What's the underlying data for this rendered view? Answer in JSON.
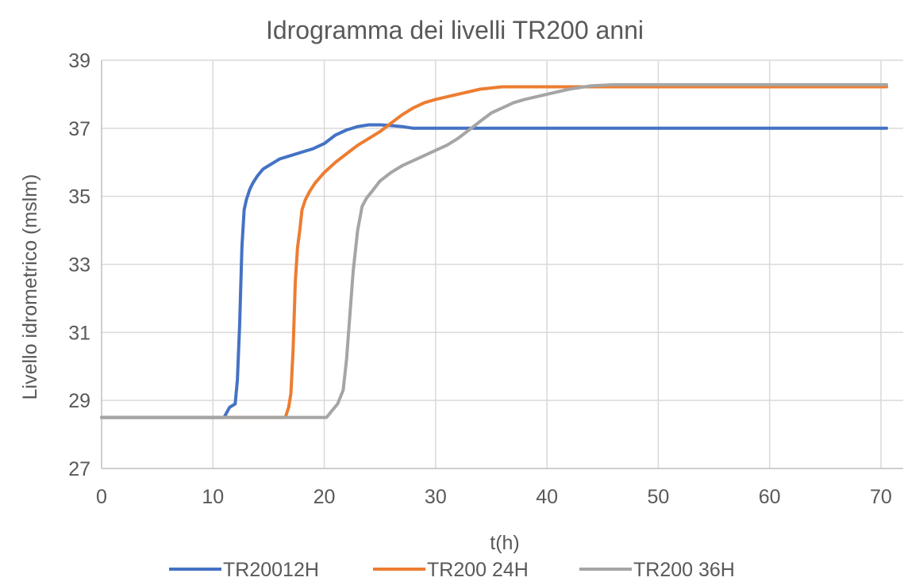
{
  "chart_data": {
    "type": "line",
    "title": "Idrogramma dei livelli TR200 anni",
    "xlabel": "t(h)",
    "ylabel": "Livello idrometrico (mslm)",
    "xlim": [
      0,
      72
    ],
    "ylim": [
      27,
      39
    ],
    "xticks": [
      0,
      10,
      20,
      30,
      40,
      50,
      60,
      70
    ],
    "yticks": [
      27,
      29,
      31,
      33,
      35,
      37,
      39
    ],
    "grid": true,
    "legend": "bottom",
    "series": [
      {
        "name": "TR20012H",
        "color": "#4472C4",
        "x": [
          0,
          11,
          11.5,
          12,
          12.2,
          12.4,
          12.6,
          12.8,
          13.0,
          13.3,
          13.6,
          14.0,
          14.5,
          15.0,
          15.5,
          16.0,
          17.0,
          18.0,
          19.0,
          20.0,
          21.0,
          22.0,
          23.0,
          24.0,
          25.0,
          26.0,
          27.0,
          28.0,
          30.0,
          40.0,
          50.0,
          60.0,
          70.5
        ],
        "y": [
          28.5,
          28.5,
          28.8,
          28.9,
          29.6,
          31.2,
          33.5,
          34.6,
          34.9,
          35.2,
          35.4,
          35.6,
          35.8,
          35.9,
          36.0,
          36.1,
          36.2,
          36.3,
          36.4,
          36.55,
          36.8,
          36.95,
          37.05,
          37.1,
          37.1,
          37.08,
          37.05,
          37.0,
          37.0,
          37.0,
          37.0,
          37.0,
          37.0
        ]
      },
      {
        "name": "TR200 24H",
        "color": "#ED7D31",
        "x": [
          0,
          16.5,
          16.8,
          17.0,
          17.2,
          17.4,
          17.6,
          17.8,
          18.0,
          18.3,
          18.7,
          19.2,
          20.0,
          21.0,
          22.0,
          23.0,
          24.0,
          25.0,
          26.0,
          27.0,
          28.0,
          29.0,
          30.0,
          32.0,
          34.0,
          36.0,
          40.0,
          50.0,
          60.0,
          70.5
        ],
        "y": [
          28.5,
          28.5,
          28.8,
          29.2,
          30.5,
          32.5,
          33.5,
          34.0,
          34.6,
          34.9,
          35.15,
          35.4,
          35.7,
          36.0,
          36.25,
          36.5,
          36.7,
          36.9,
          37.15,
          37.4,
          37.6,
          37.75,
          37.85,
          38.0,
          38.15,
          38.22,
          38.22,
          38.22,
          38.22,
          38.22
        ]
      },
      {
        "name": "TR200 36H",
        "color": "#A5A5A5",
        "x": [
          0,
          20.2,
          20.7,
          21.2,
          21.7,
          22.0,
          22.3,
          22.6,
          23.0,
          23.4,
          23.8,
          24.3,
          25.0,
          26.0,
          27.0,
          28.0,
          29.0,
          30.0,
          31.0,
          32.0,
          33.0,
          34.0,
          35.0,
          36.0,
          37.0,
          38.0,
          40.0,
          42.0,
          44.0,
          46.0,
          50.0,
          60.0,
          70.5
        ],
        "y": [
          28.5,
          28.5,
          28.7,
          28.9,
          29.3,
          30.2,
          31.5,
          32.8,
          34.0,
          34.7,
          34.95,
          35.15,
          35.45,
          35.7,
          35.9,
          36.05,
          36.2,
          36.35,
          36.5,
          36.7,
          36.95,
          37.2,
          37.45,
          37.6,
          37.75,
          37.85,
          38.0,
          38.15,
          38.25,
          38.28,
          38.28,
          38.28,
          38.28
        ]
      }
    ]
  }
}
